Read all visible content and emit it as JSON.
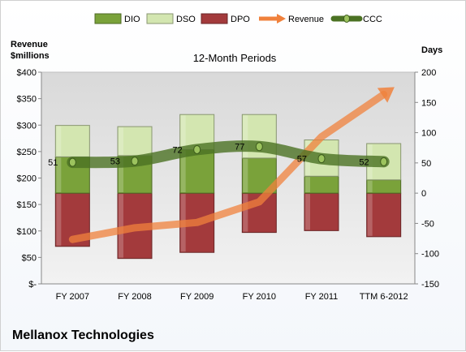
{
  "chart_data": {
    "type": "bar",
    "title": "12-Month Periods",
    "company": "Mellanox Technologies",
    "ylabel_left_line1": "Revenue",
    "ylabel_left_line2": "$millions",
    "ylabel_right": "Days",
    "categories": [
      "FY 2007",
      "FY 2008",
      "FY 2009",
      "FY 2010",
      "FY 2011",
      "TTM 6-2012"
    ],
    "left_axis": {
      "ylim": [
        0,
        400
      ],
      "ticks": [
        0,
        50,
        100,
        150,
        200,
        250,
        300,
        350,
        400
      ],
      "tick_labels": [
        "$-",
        "$50",
        "$100",
        "$150",
        "$200",
        "$250",
        "$300",
        "$350",
        "$400"
      ]
    },
    "right_axis": {
      "ylim": [
        -150,
        200
      ],
      "ticks": [
        -150,
        -100,
        -50,
        0,
        50,
        100,
        150,
        200
      ]
    },
    "legend_position": "top",
    "series": [
      {
        "name": "DIO",
        "kind": "stacked-bar",
        "axis": "right",
        "color": "#7aa23a",
        "values": [
          60,
          62,
          72,
          58,
          28,
          22
        ]
      },
      {
        "name": "DSO",
        "kind": "stacked-bar",
        "axis": "right",
        "color": "#d3e6b0",
        "values": [
          52,
          48,
          58,
          72,
          60,
          60
        ]
      },
      {
        "name": "DPO",
        "kind": "stacked-bar-negative",
        "axis": "right",
        "color": "#a33a3c",
        "values": [
          -88,
          -108,
          -98,
          -65,
          -62,
          -72
        ]
      },
      {
        "name": "Revenue",
        "kind": "arrow-line",
        "axis": "left",
        "color": "#f0813c",
        "values": [
          84,
          106,
          116,
          155,
          278,
          358
        ]
      },
      {
        "name": "CCC",
        "kind": "line",
        "axis": "right",
        "color": "#4b7223",
        "values": [
          51,
          53,
          72,
          77,
          57,
          52
        ]
      }
    ],
    "ccc_labels": [
      "51",
      "53",
      "72",
      "77",
      "57",
      "52"
    ]
  }
}
